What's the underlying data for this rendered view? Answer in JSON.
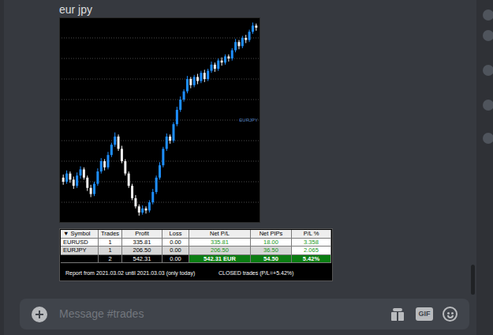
{
  "message": {
    "text": "eur jpy"
  },
  "chart_data": {
    "type": "candlestick",
    "open": [
      22,
      20,
      24,
      21,
      18,
      23,
      26,
      22,
      17,
      14,
      19,
      25,
      30,
      27,
      33,
      38,
      42,
      36,
      30,
      24,
      18,
      12,
      8,
      5,
      7,
      6,
      10,
      15,
      22,
      28,
      36,
      42,
      40,
      48,
      55,
      60,
      64,
      70,
      67,
      71,
      69,
      73,
      70,
      74,
      77,
      75,
      79,
      78,
      81,
      80,
      84,
      88,
      86,
      90,
      89,
      93,
      96
    ],
    "high": [
      23.5,
      25.5,
      25,
      22.5,
      24.5,
      27.5,
      27,
      23,
      18.5,
      20,
      26.5,
      31.5,
      31,
      34.5,
      39,
      44,
      43,
      37.5,
      31,
      25,
      19,
      13.5,
      9,
      8.5,
      8,
      11,
      16.5,
      23,
      29.5,
      37,
      43.5,
      43,
      49,
      56.5,
      61.5,
      65,
      71.5,
      71,
      72,
      72.5,
      74,
      74.5,
      75,
      78.5,
      78,
      80,
      80.5,
      82,
      82,
      85,
      89.5,
      89,
      91,
      91.5,
      94,
      97.5,
      97
    ],
    "low": [
      18.5,
      19,
      19.5,
      16.5,
      17,
      21.5,
      21,
      15.5,
      12.5,
      13,
      18,
      24,
      25.5,
      26,
      32,
      37,
      35,
      29,
      23,
      17,
      11,
      7,
      3.5,
      4,
      4.5,
      5,
      9,
      14,
      21,
      27,
      35,
      38.5,
      39,
      47,
      54,
      59,
      63,
      65.5,
      66,
      67.5,
      68,
      68.5,
      69,
      73,
      73.5,
      74,
      76.5,
      77,
      78.5,
      79,
      83,
      84.5,
      85,
      87.5,
      88,
      92,
      93.5
    ],
    "close": [
      20,
      24,
      21,
      18,
      23,
      26,
      22,
      17,
      14,
      19,
      25,
      30,
      27,
      33,
      38,
      42,
      36,
      30,
      24,
      18,
      12,
      8,
      5,
      7,
      6,
      10,
      15,
      22,
      28,
      36,
      42,
      40,
      48,
      55,
      60,
      64,
      70,
      67,
      71,
      69,
      73,
      70,
      74,
      77,
      75,
      79,
      78,
      81,
      80,
      84,
      88,
      86,
      90,
      89,
      93,
      96,
      95
    ],
    "ylim": [
      0,
      100
    ],
    "yticks": [
      10,
      20,
      30,
      40,
      50,
      60,
      70,
      80,
      90
    ],
    "grid": true,
    "tick_labels": false,
    "annotations": [
      "EURJPY"
    ]
  },
  "table": {
    "header": [
      "▼ Symbol",
      "Trades",
      "Profit",
      "Loss",
      "Net P/L",
      "Net PIPs",
      "P/L %"
    ],
    "rows": [
      [
        "EURUSD",
        "1",
        "335.81",
        "0.00",
        "335.81",
        "18.00",
        "3.358"
      ],
      [
        "EURJPY",
        "1",
        "206.50",
        "0.00",
        "206.50",
        "36.50",
        "2.065"
      ],
      [
        null,
        "2",
        "542.31",
        "0.00",
        "542.31 EUR",
        "54.50",
        "5.42%"
      ]
    ],
    "footer": {
      "report": "Report from 2021.03.02 until 2021.03.03 (only today)",
      "summary": "CLOSED trades (P/L=+5.42%)"
    }
  },
  "input": {
    "placeholder": "Message #trades",
    "gif_button": "GIF"
  }
}
